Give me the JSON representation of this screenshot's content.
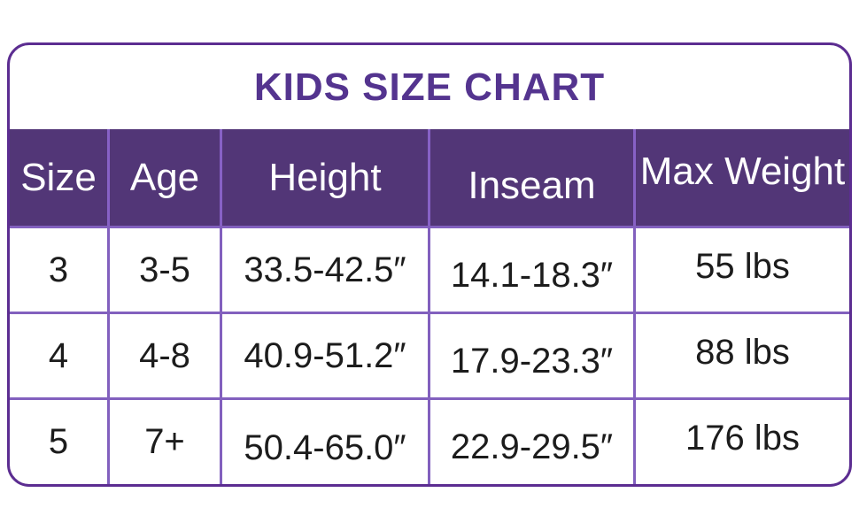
{
  "title": "KIDS SIZE CHART",
  "chart_data": {
    "type": "table",
    "title": "KIDS SIZE CHART",
    "columns": [
      "Size",
      "Age",
      "Height",
      "Inseam",
      "Max Weight"
    ],
    "rows": [
      [
        "3",
        "3-5",
        "33.5-42.5″",
        "14.1-18.3″",
        "55 lbs"
      ],
      [
        "4",
        "4-8",
        "40.9-51.2″",
        "17.9-23.3″",
        "88 lbs"
      ],
      [
        "5",
        "7+",
        "50.4-65.0″",
        "22.9-29.5″",
        "176 lbs"
      ]
    ],
    "layout_hints": {
      "header_position": "top",
      "grid": "on",
      "units": {
        "height": "inches",
        "inseam": "inches",
        "max_weight": "lbs"
      }
    }
  },
  "colors": {
    "title_color": "#54348F",
    "header_bg": "#523677",
    "header_text": "#FFFFFF",
    "header_divider": "#8761C6",
    "grid_line": "#8260BE",
    "outer_border": "#5C2D91",
    "cell_text": "#1C1C1C",
    "background": "#FFFFFF"
  }
}
